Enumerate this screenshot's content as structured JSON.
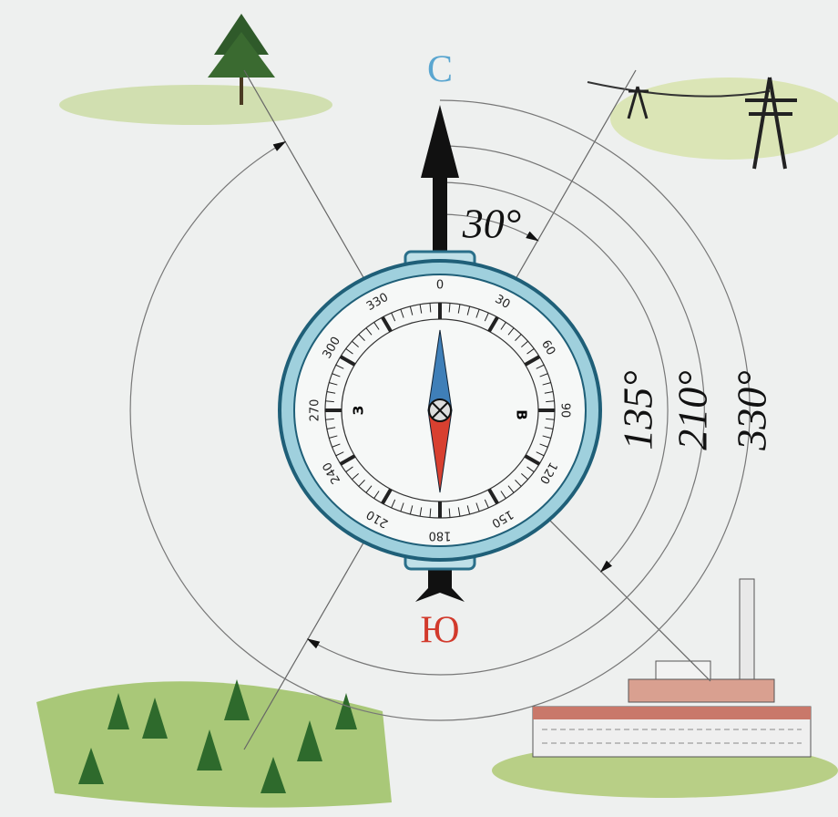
{
  "labels": {
    "north": "С",
    "south": "Ю",
    "east": "В",
    "west": "З"
  },
  "azimuths": [
    "30°",
    "135°",
    "210°",
    "330°"
  ],
  "dial": [
    "0",
    "30",
    "60",
    "90",
    "120",
    "150",
    "180",
    "210",
    "240",
    "270",
    "300",
    "330"
  ]
}
